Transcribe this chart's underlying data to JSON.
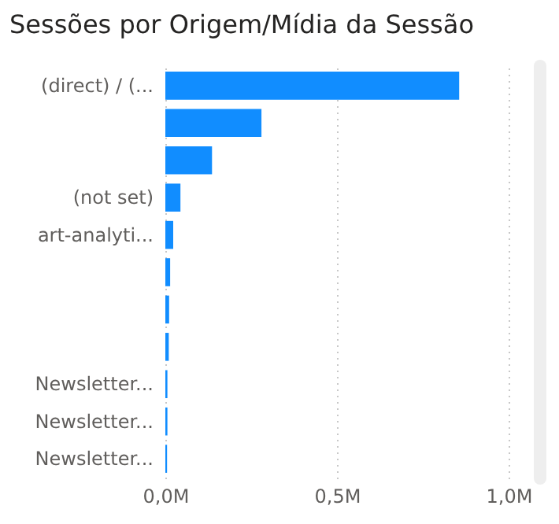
{
  "chart_data": {
    "type": "bar",
    "orientation": "horizontal",
    "title": "Sessões por Origem/Mídia da Sessão",
    "categories": [
      "(direct) / (...",
      null,
      null,
      "(not set)",
      "art-analyti...",
      null,
      null,
      null,
      "Newsletter...",
      "Newsletter...",
      "Newsletter..."
    ],
    "values": [
      856000,
      280000,
      136000,
      44000,
      23000,
      14000,
      11000,
      10000,
      6000,
      6000,
      5000
    ],
    "color": "#118dff",
    "xlim": [
      0,
      1000000
    ],
    "xticks": [
      {
        "value": 0,
        "label": "0,0M"
      },
      {
        "value": 500000,
        "label": "0,5M"
      },
      {
        "value": 1000000,
        "label": "1,0M"
      }
    ],
    "grid": "x"
  }
}
